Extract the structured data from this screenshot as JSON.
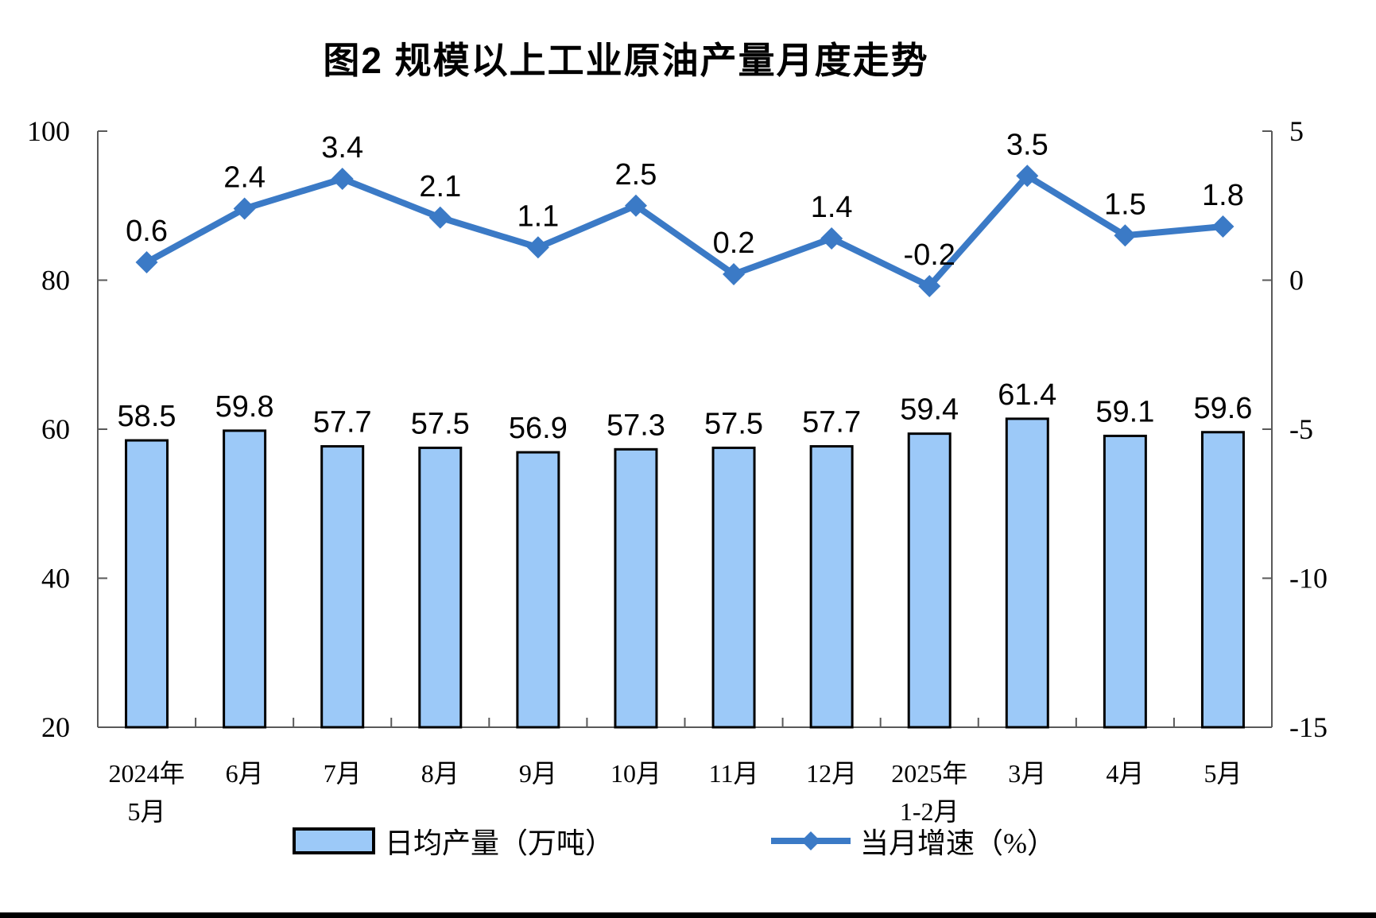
{
  "title": "图2 规模以上工业原油产量月度走势",
  "legend": {
    "bar_label": "日均产量（万吨）",
    "line_label": "当月增速（%）"
  },
  "colors": {
    "background": "#FFFFFF",
    "bar_fill": "#9CC9F8",
    "bar_stroke": "#000000",
    "line": "#3B7AC6",
    "axis": "#595959",
    "text": "#000000"
  },
  "chart_data": {
    "type": "bar+line combo",
    "title": "图2 规模以上工业原油产量月度走势",
    "categories": [
      "2024年\n5月",
      "6月",
      "7月",
      "8月",
      "9月",
      "10月",
      "11月",
      "12月",
      "2025年\n1-2月",
      "3月",
      "4月",
      "5月"
    ],
    "series": [
      {
        "name": "日均产量（万吨）",
        "type": "bar",
        "y_axis": "left",
        "values": [
          58.5,
          59.8,
          57.7,
          57.5,
          56.9,
          57.3,
          57.5,
          57.7,
          59.4,
          61.4,
          59.1,
          59.6
        ]
      },
      {
        "name": "当月增速（%）",
        "type": "line",
        "y_axis": "right",
        "values": [
          0.6,
          2.4,
          3.4,
          2.1,
          1.1,
          2.5,
          0.2,
          1.4,
          -0.2,
          3.5,
          1.5,
          1.8
        ]
      }
    ],
    "left_axis": {
      "min": 20,
      "max": 100,
      "ticks": [
        20,
        40,
        60,
        80,
        100
      ]
    },
    "right_axis": {
      "min": -15,
      "max": 5,
      "ticks": [
        -15,
        -10,
        -5,
        0,
        5
      ]
    },
    "grid": false,
    "data_labels": true,
    "legend_position": "bottom"
  }
}
